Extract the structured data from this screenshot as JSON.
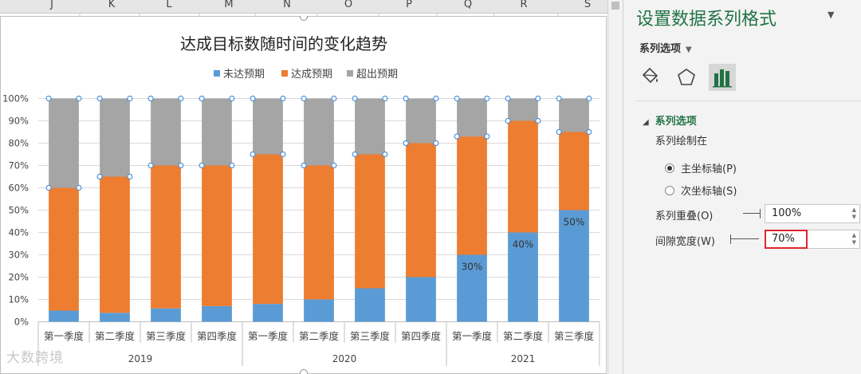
{
  "columns": [
    "J",
    "K",
    "L",
    "M",
    "N",
    "O",
    "P",
    "Q",
    "R",
    "S"
  ],
  "watermark": "大数跨境",
  "chart_data": {
    "type": "bar",
    "stacked": true,
    "title": "达成目标数随时间的变化趋势",
    "categories": [
      "第一季度",
      "第二季度",
      "第三季度",
      "第四季度",
      "第一季度",
      "第二季度",
      "第三季度",
      "第四季度",
      "第一季度",
      "第二季度",
      "第三季度"
    ],
    "groups": [
      {
        "label": "2019",
        "count": 4
      },
      {
        "label": "2020",
        "count": 4
      },
      {
        "label": "2021",
        "count": 3
      }
    ],
    "series": [
      {
        "name": "未达预期",
        "color": "#5b9bd5",
        "values": [
          5,
          4,
          6,
          7,
          8,
          10,
          15,
          20,
          30,
          40,
          50
        ]
      },
      {
        "name": "达成预期",
        "color": "#ed7d31",
        "values": [
          55,
          61,
          64,
          63,
          67,
          60,
          60,
          60,
          53,
          50,
          35
        ]
      },
      {
        "name": "超出预期",
        "color": "#a5a5a5",
        "values": [
          40,
          35,
          30,
          30,
          25,
          30,
          25,
          20,
          17,
          10,
          15
        ]
      }
    ],
    "data_labels": [
      {
        "category_index": 8,
        "series": "未达预期",
        "text": "30%"
      },
      {
        "category_index": 9,
        "series": "未达预期",
        "text": "40%"
      },
      {
        "category_index": 10,
        "series": "未达预期",
        "text": "50%"
      }
    ],
    "yticks": [
      "0%",
      "10%",
      "20%",
      "30%",
      "40%",
      "50%",
      "60%",
      "70%",
      "80%",
      "90%",
      "100%"
    ],
    "ylim": [
      0,
      100
    ],
    "grid": true,
    "legend_position": "top"
  },
  "pane": {
    "title": "设置数据系列格式",
    "collapse_icon": "triangle-down-icon",
    "menu_label": "系列选项",
    "tabs": [
      {
        "name": "fill-line",
        "icon": "paint-bucket-icon"
      },
      {
        "name": "effects",
        "icon": "pentagon-icon"
      },
      {
        "name": "series-options",
        "icon": "bar-chart-icon",
        "active": true
      }
    ],
    "section_title": "系列选项",
    "plot_on_label": "系列绘制在",
    "radio_primary": "主坐标轴(P)",
    "radio_secondary": "次坐标轴(S)",
    "selected_axis": "primary",
    "overlap_label": "系列重叠(O)",
    "overlap_value": "100%",
    "gap_label": "间隙宽度(W)",
    "gap_value": "70%"
  }
}
